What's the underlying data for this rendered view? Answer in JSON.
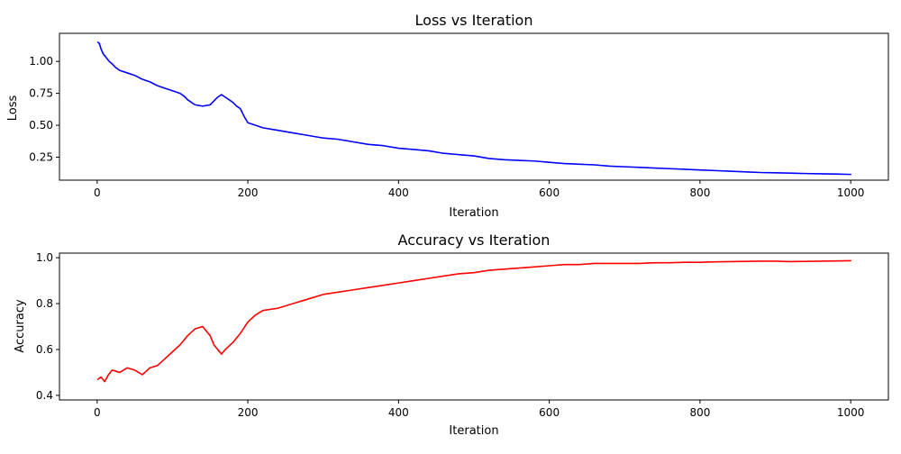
{
  "chart_data": [
    {
      "type": "line",
      "title": "Loss vs Iteration",
      "xlabel": "Iteration",
      "ylabel": "Loss",
      "xlim": [
        -50,
        1050
      ],
      "ylim": [
        0.07,
        1.22
      ],
      "xticks": [
        0,
        200,
        400,
        600,
        800,
        1000
      ],
      "xtick_labels": [
        "0",
        "200",
        "400",
        "600",
        "800",
        "1000"
      ],
      "yticks": [
        0.25,
        0.5,
        0.75,
        1.0
      ],
      "ytick_labels": [
        "0.25",
        "0.50",
        "0.75",
        "1.00"
      ],
      "grid": false,
      "color": "#0000ff",
      "series": [
        {
          "x": [
            1,
            3,
            5,
            8,
            12,
            16,
            20,
            25,
            30,
            40,
            50,
            60,
            70,
            80,
            90,
            100,
            110,
            115,
            120,
            125,
            130,
            140,
            150,
            155,
            160,
            165,
            170,
            175,
            180,
            185,
            190,
            195,
            200,
            210,
            220,
            240,
            260,
            280,
            300,
            320,
            340,
            360,
            380,
            400,
            420,
            440,
            460,
            480,
            500,
            520,
            540,
            560,
            580,
            600,
            620,
            640,
            660,
            680,
            700,
            720,
            740,
            760,
            780,
            800,
            820,
            840,
            860,
            880,
            900,
            920,
            940,
            960,
            980,
            1000
          ],
          "y": [
            1.15,
            1.14,
            1.1,
            1.06,
            1.03,
            1.0,
            0.98,
            0.95,
            0.93,
            0.91,
            0.89,
            0.86,
            0.84,
            0.81,
            0.79,
            0.77,
            0.75,
            0.73,
            0.7,
            0.68,
            0.66,
            0.65,
            0.66,
            0.69,
            0.72,
            0.74,
            0.72,
            0.7,
            0.68,
            0.65,
            0.63,
            0.57,
            0.52,
            0.5,
            0.48,
            0.46,
            0.44,
            0.42,
            0.4,
            0.39,
            0.37,
            0.35,
            0.34,
            0.32,
            0.31,
            0.3,
            0.28,
            0.27,
            0.26,
            0.24,
            0.23,
            0.225,
            0.22,
            0.21,
            0.2,
            0.195,
            0.19,
            0.18,
            0.175,
            0.17,
            0.165,
            0.16,
            0.155,
            0.15,
            0.145,
            0.14,
            0.135,
            0.13,
            0.128,
            0.125,
            0.122,
            0.12,
            0.118,
            0.115
          ]
        }
      ]
    },
    {
      "type": "line",
      "title": "Accuracy vs Iteration",
      "xlabel": "Iteration",
      "ylabel": "Accuracy",
      "xlim": [
        -50,
        1050
      ],
      "ylim": [
        0.38,
        1.02
      ],
      "xticks": [
        0,
        200,
        400,
        600,
        800,
        1000
      ],
      "xtick_labels": [
        "0",
        "200",
        "400",
        "600",
        "800",
        "1000"
      ],
      "yticks": [
        0.4,
        0.6,
        0.8,
        1.0
      ],
      "ytick_labels": [
        "0.4",
        "0.6",
        "0.8",
        "1.0"
      ],
      "grid": false,
      "color": "#ff0000",
      "series": [
        {
          "x": [
            1,
            5,
            10,
            15,
            20,
            30,
            40,
            50,
            60,
            70,
            80,
            90,
            100,
            110,
            120,
            130,
            140,
            150,
            155,
            160,
            165,
            170,
            180,
            190,
            200,
            210,
            220,
            240,
            260,
            280,
            300,
            320,
            340,
            360,
            380,
            400,
            420,
            440,
            460,
            480,
            500,
            520,
            540,
            560,
            580,
            600,
            620,
            640,
            660,
            680,
            700,
            720,
            740,
            760,
            780,
            800,
            820,
            840,
            860,
            880,
            900,
            920,
            940,
            960,
            980,
            1000
          ],
          "y": [
            0.47,
            0.48,
            0.46,
            0.49,
            0.51,
            0.5,
            0.52,
            0.51,
            0.49,
            0.52,
            0.53,
            0.56,
            0.59,
            0.62,
            0.66,
            0.69,
            0.7,
            0.66,
            0.62,
            0.6,
            0.58,
            0.6,
            0.63,
            0.67,
            0.72,
            0.75,
            0.77,
            0.78,
            0.8,
            0.82,
            0.84,
            0.85,
            0.86,
            0.87,
            0.88,
            0.89,
            0.9,
            0.91,
            0.92,
            0.93,
            0.935,
            0.945,
            0.95,
            0.955,
            0.96,
            0.965,
            0.97,
            0.97,
            0.975,
            0.975,
            0.975,
            0.975,
            0.978,
            0.978,
            0.98,
            0.98,
            0.982,
            0.983,
            0.984,
            0.985,
            0.985,
            0.983,
            0.984,
            0.985,
            0.986,
            0.987
          ]
        }
      ]
    }
  ]
}
